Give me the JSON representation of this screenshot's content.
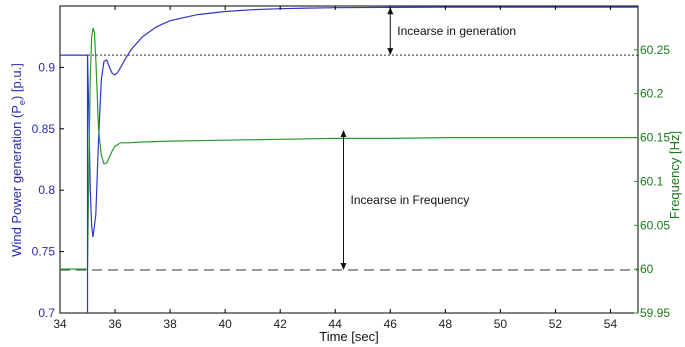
{
  "chart_data": {
    "type": "line",
    "xlabel": "Time [sec]",
    "ylabel_left": "Wind Power generation (P_e) [p.u.]",
    "ylabel_left_parts": {
      "main": "Wind Power generation (P",
      "sub": "e",
      "tail": ") [p.u.]"
    },
    "ylabel_right": "Frequency [Hz]",
    "xlim": [
      34,
      55
    ],
    "ylim_left": [
      0.7,
      0.95
    ],
    "ylim_right": [
      59.95,
      60.3
    ],
    "x_ticks": [
      "34",
      "36",
      "38",
      "40",
      "42",
      "44",
      "46",
      "48",
      "50",
      "52",
      "54"
    ],
    "y_ticks_left": [
      "0.7",
      "0.75",
      "0.8",
      "0.85",
      "0.9"
    ],
    "y_ticks_right": [
      "59.95",
      "60",
      "60.05",
      "60.1",
      "60.15",
      "60.2",
      "60.25"
    ],
    "colors": {
      "power": "#3535c8",
      "frequency": "#2a9a2a",
      "reference": "#333333"
    },
    "series": [
      {
        "axis": "left",
        "x": [
          34,
          35.0,
          35.05,
          35.1,
          35.15,
          35.2,
          35.3,
          35.4,
          35.5,
          35.6,
          35.7,
          35.8,
          35.9,
          36.0,
          36.1,
          36.2,
          36.4,
          36.6,
          37.0,
          37.5,
          38,
          39,
          40,
          41,
          42,
          43,
          44,
          46,
          48,
          50,
          52,
          55
        ],
        "values": [
          0.91,
          0.91,
          0.86,
          0.8,
          0.77,
          0.762,
          0.78,
          0.84,
          0.89,
          0.905,
          0.906,
          0.9,
          0.895,
          0.894,
          0.896,
          0.9,
          0.908,
          0.915,
          0.925,
          0.933,
          0.938,
          0.943,
          0.9455,
          0.947,
          0.9478,
          0.9483,
          0.9486,
          0.9489,
          0.949,
          0.949,
          0.949,
          0.949
        ]
      },
      {
        "axis": "right",
        "x": [
          34,
          35.0,
          35.05,
          35.1,
          35.15,
          35.2,
          35.25,
          35.3,
          35.35,
          35.4,
          35.5,
          35.6,
          35.7,
          35.8,
          35.9,
          36.0,
          36.2,
          36.5,
          37,
          38,
          40,
          42,
          44,
          46,
          48,
          50,
          52,
          55
        ],
        "values": [
          60,
          60,
          60.12,
          60.22,
          60.265,
          60.275,
          60.27,
          60.24,
          60.2,
          60.16,
          60.13,
          60.12,
          60.121,
          60.128,
          60.135,
          60.14,
          60.144,
          60.144,
          60.145,
          60.146,
          60.147,
          60.148,
          60.149,
          60.149,
          60.15,
          60.15,
          60.15,
          60.15
        ]
      }
    ],
    "reference_lines": [
      {
        "axis": "left",
        "value": 0.91,
        "style": "dotted"
      },
      {
        "axis": "left",
        "value": 0.735,
        "style": "dashed"
      }
    ],
    "annotations": [
      {
        "text": "Incearse in generation",
        "x": 46,
        "from": 0.91,
        "to": 0.949,
        "axis": "left"
      },
      {
        "text": "Incearse in Frequency",
        "x": 44.3,
        "from": 0.735,
        "to": 0.849,
        "axis": "left"
      }
    ]
  }
}
